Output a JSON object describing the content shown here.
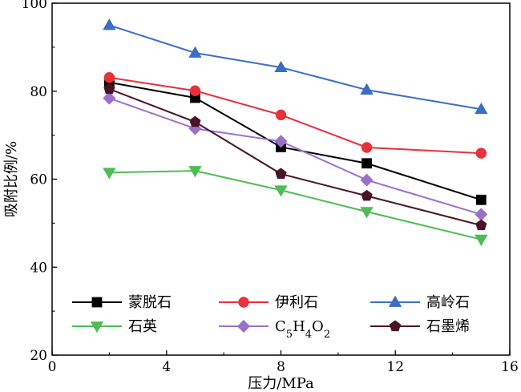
{
  "chart_data": {
    "type": "line",
    "title": "",
    "xlabel": "压力/MPa",
    "ylabel": "吸附比例/%",
    "xlim": [
      0,
      16
    ],
    "ylim": [
      20,
      100
    ],
    "xticks": [
      0,
      4,
      8,
      12,
      16
    ],
    "yticks": [
      20,
      40,
      60,
      80,
      100
    ],
    "grid": false,
    "legend_position": "lower-left",
    "series": [
      {
        "name": "蒙脱石",
        "marker": "square",
        "color": "#000000",
        "x": [
          2,
          5,
          8,
          11,
          15
        ],
        "y": [
          82.0,
          78.5,
          67.3,
          63.6,
          55.3
        ]
      },
      {
        "name": "伊利石",
        "marker": "circle",
        "color": "#e8313a",
        "x": [
          2,
          5,
          8,
          11,
          15
        ],
        "y": [
          83.1,
          80.1,
          74.6,
          67.2,
          65.9
        ]
      },
      {
        "name": "高岭石",
        "marker": "triangle-up",
        "color": "#3b6fc4",
        "x": [
          2,
          5,
          8,
          11,
          15
        ],
        "y": [
          95.0,
          88.7,
          85.4,
          80.3,
          75.9
        ]
      },
      {
        "name": "石英",
        "marker": "triangle-down",
        "color": "#4ebd55",
        "x": [
          2,
          5,
          8,
          11,
          15
        ],
        "y": [
          61.5,
          61.9,
          57.5,
          52.6,
          46.3
        ]
      },
      {
        "name": "C5H4O2",
        "marker": "diamond",
        "color": "#9970c9",
        "x": [
          2,
          5,
          8,
          11,
          15
        ],
        "y": [
          78.4,
          71.5,
          68.6,
          59.8,
          52.0
        ]
      },
      {
        "name": "石墨烯",
        "marker": "pentagon",
        "color": "#4b1426",
        "x": [
          2,
          5,
          8,
          11,
          15
        ],
        "y": [
          80.5,
          73.0,
          61.2,
          56.2,
          49.5
        ]
      }
    ]
  }
}
